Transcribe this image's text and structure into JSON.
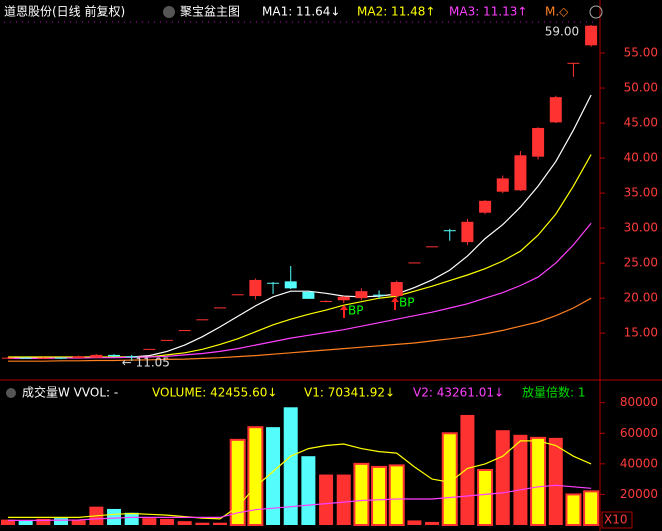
{
  "chart_data": [
    {
      "type": "candlestick",
      "legend": [
        {
          "text": "道恩股份(日线 前复权)",
          "color": "#ffffff"
        },
        {
          "text": "聚宝盆主图",
          "color": "#ffffff"
        },
        {
          "text": "MA1: 11.64↓",
          "color": "#ffffff"
        },
        {
          "text": "MA2: 11.48↑",
          "color": "#ffff00"
        },
        {
          "text": "MA3: 11.13↑",
          "color": "#ff40ff"
        },
        {
          "text": "M.◇",
          "color": "#ff8020"
        }
      ],
      "up_color": "#ff3232",
      "down_color": "#54fcfc",
      "ohlc": [
        [
          11.5,
          11.6,
          11.4,
          11.5
        ],
        [
          11.5,
          11.6,
          11.4,
          11.45
        ],
        [
          11.45,
          11.6,
          11.4,
          11.5
        ],
        [
          11.5,
          11.6,
          11.3,
          11.45
        ],
        [
          11.45,
          11.8,
          11.4,
          11.7
        ],
        [
          11.5,
          12.0,
          11.4,
          11.9
        ],
        [
          11.9,
          12.0,
          11.6,
          11.7
        ],
        [
          11.7,
          11.9,
          11.05,
          11.6
        ],
        [
          12.76,
          12.76,
          12.76,
          12.76
        ],
        [
          14.04,
          14.04,
          14.04,
          14.04
        ],
        [
          15.44,
          15.44,
          15.44,
          15.44
        ],
        [
          16.98,
          16.98,
          16.98,
          16.98
        ],
        [
          18.68,
          18.68,
          18.68,
          18.68
        ],
        [
          20.55,
          20.55,
          20.55,
          20.55
        ],
        [
          20.3,
          22.8,
          19.8,
          22.6
        ],
        [
          22.2,
          22.3,
          20.6,
          22.1
        ],
        [
          22.4,
          24.6,
          21.3,
          21.4
        ],
        [
          20.9,
          21.0,
          19.9,
          19.9
        ],
        [
          19.5,
          19.7,
          19.4,
          19.6
        ],
        [
          19.7,
          20.3,
          19.3,
          20.2
        ],
        [
          20.0,
          21.4,
          19.7,
          21.0
        ],
        [
          20.5,
          21.1,
          19.9,
          20.4
        ],
        [
          20.3,
          22.5,
          20.0,
          22.3
        ],
        [
          25.1,
          25.1,
          25.1,
          25.1
        ],
        [
          27.4,
          27.4,
          27.4,
          27.4
        ],
        [
          29.7,
          29.9,
          28.2,
          29.6
        ],
        [
          28.0,
          31.3,
          27.6,
          30.9
        ],
        [
          32.2,
          34.0,
          32.0,
          33.9
        ],
        [
          35.2,
          37.5,
          35.0,
          37.1
        ],
        [
          35.4,
          41.0,
          35.3,
          40.4
        ],
        [
          40.2,
          44.4,
          39.8,
          44.3
        ],
        [
          45.1,
          48.9,
          45.0,
          48.7
        ],
        [
          53.6,
          53.6,
          51.6,
          53.6
        ],
        [
          56.1,
          59.0,
          55.9,
          58.9
        ]
      ],
      "series": [
        {
          "color": "#ffffff",
          "values": [
            11.5,
            11.5,
            11.5,
            11.5,
            11.5,
            11.55,
            11.6,
            11.6,
            11.8,
            12.4,
            13.3,
            14.5,
            15.9,
            17.4,
            18.9,
            20.2,
            21.0,
            21.0,
            20.7,
            20.3,
            20.2,
            20.3,
            20.6,
            21.5,
            22.6,
            24.0,
            26.0,
            28.5,
            30.5,
            33.0,
            36.0,
            39.5,
            44.0,
            49.0
          ]
        },
        {
          "color": "#ffff00",
          "values": [
            11.6,
            11.6,
            11.6,
            11.6,
            11.6,
            11.6,
            11.6,
            11.6,
            11.6,
            11.9,
            12.2,
            12.7,
            13.4,
            14.2,
            15.2,
            16.2,
            17.0,
            17.7,
            18.3,
            19.0,
            19.5,
            20.0,
            20.3,
            21.0,
            21.7,
            22.5,
            23.3,
            24.2,
            25.3,
            26.7,
            29.0,
            32.0,
            36.0,
            40.5
          ]
        },
        {
          "color": "#ff40ff",
          "values": [
            11.4,
            11.4,
            11.4,
            11.45,
            11.45,
            11.5,
            11.5,
            11.55,
            11.6,
            11.7,
            11.9,
            12.1,
            12.4,
            12.8,
            13.3,
            13.8,
            14.3,
            14.7,
            15.1,
            15.5,
            16.0,
            16.5,
            17.0,
            17.5,
            18.0,
            18.6,
            19.2,
            20.0,
            20.8,
            21.8,
            23.0,
            25.0,
            27.6,
            30.7
          ]
        },
        {
          "color": "#ff8020",
          "values": [
            11.0,
            11.0,
            11.0,
            11.05,
            11.05,
            11.1,
            11.1,
            11.15,
            11.2,
            11.25,
            11.3,
            11.4,
            11.5,
            11.65,
            11.8,
            12.0,
            12.2,
            12.4,
            12.6,
            12.8,
            13.0,
            13.2,
            13.4,
            13.6,
            13.9,
            14.2,
            14.5,
            14.9,
            15.4,
            16.0,
            16.6,
            17.5,
            18.6,
            20.0
          ]
        }
      ],
      "max_label": "59.00",
      "min_label": "← 11.05",
      "signals": [
        "BP",
        "BP"
      ],
      "ylim": [
        8.6,
        60
      ],
      "yticks": [
        {
          "value": 15,
          "label": "15.00"
        },
        {
          "value": 20,
          "label": "20.00"
        },
        {
          "value": 25,
          "label": "25.00"
        },
        {
          "value": 30,
          "label": "30.00"
        },
        {
          "value": 35,
          "label": "35.00"
        },
        {
          "value": 40,
          "label": "40.00"
        },
        {
          "value": 45,
          "label": "45.00"
        },
        {
          "value": 50,
          "label": "50.00"
        },
        {
          "value": 55,
          "label": "55.00"
        }
      ]
    },
    {
      "type": "bar",
      "legend": [
        {
          "text": "成交量W VVOL: -",
          "color": "#ffffff"
        },
        {
          "text": "VOLUME: 42455.60↓",
          "color": "#ffff00"
        },
        {
          "text": "V1: 70341.92↓",
          "color": "#ffff00"
        },
        {
          "text": "V2: 43261.01↓",
          "color": "#ff40ff"
        },
        {
          "text": "放量倍数: 1",
          "color": "#00e000"
        }
      ],
      "values": [
        3500,
        3000,
        4000,
        4500,
        3000,
        12000,
        10500,
        8000,
        4500,
        4000,
        2500,
        1500,
        1500,
        55700,
        64000,
        64000,
        77000,
        45000,
        33000,
        33000,
        40000,
        38000,
        39000,
        3000,
        2000,
        60000,
        72000,
        36000,
        62000,
        59000,
        57000,
        57000,
        20000,
        22000
      ],
      "colors": [
        "#ff3232",
        "#54fcfc",
        "#ff3232",
        "#54fcfc",
        "#ff3232",
        "#ff3232",
        "#54fcfc",
        "#54fcfc",
        "#ff3232",
        "#ff3232",
        "#ff3232",
        "#ff3232",
        "#ff3232",
        "#ffff00",
        "#ffff00",
        "#54fcfc",
        "#54fcfc",
        "#54fcfc",
        "#ff3232",
        "#ff3232",
        "#ffff00",
        "#ffff00",
        "#ffff00",
        "#ff3232",
        "#ff3232",
        "#ffff00",
        "#ff3232",
        "#ffff00",
        "#ff3232",
        "#ff3232",
        "#ffff00",
        "#ff3232",
        "#ffff00",
        "#ffff00"
      ],
      "series": [
        {
          "color": "#ffff00",
          "values": [
            5000,
            5000,
            5000,
            5000,
            5000,
            6000,
            7000,
            7500,
            7000,
            6500,
            5500,
            4500,
            4000,
            12000,
            25000,
            35000,
            45000,
            50000,
            52000,
            53000,
            50000,
            48000,
            47000,
            38000,
            30000,
            28000,
            37000,
            40000,
            45000,
            55000,
            55000,
            52000,
            45000,
            40000
          ]
        },
        {
          "color": "#ff40ff",
          "values": [
            3000,
            3000,
            3000,
            3200,
            3300,
            4000,
            4500,
            5000,
            5000,
            5000,
            5000,
            5000,
            5000,
            8000,
            10000,
            11000,
            12000,
            13000,
            14000,
            15000,
            16000,
            16500,
            17000,
            17000,
            17000,
            18000,
            19000,
            20000,
            21000,
            23000,
            25000,
            26000,
            25000,
            24000
          ]
        }
      ],
      "ylim": [
        0,
        87000
      ],
      "yticks": [
        20000,
        40000,
        60000,
        80000
      ],
      "unit": "X10"
    }
  ]
}
